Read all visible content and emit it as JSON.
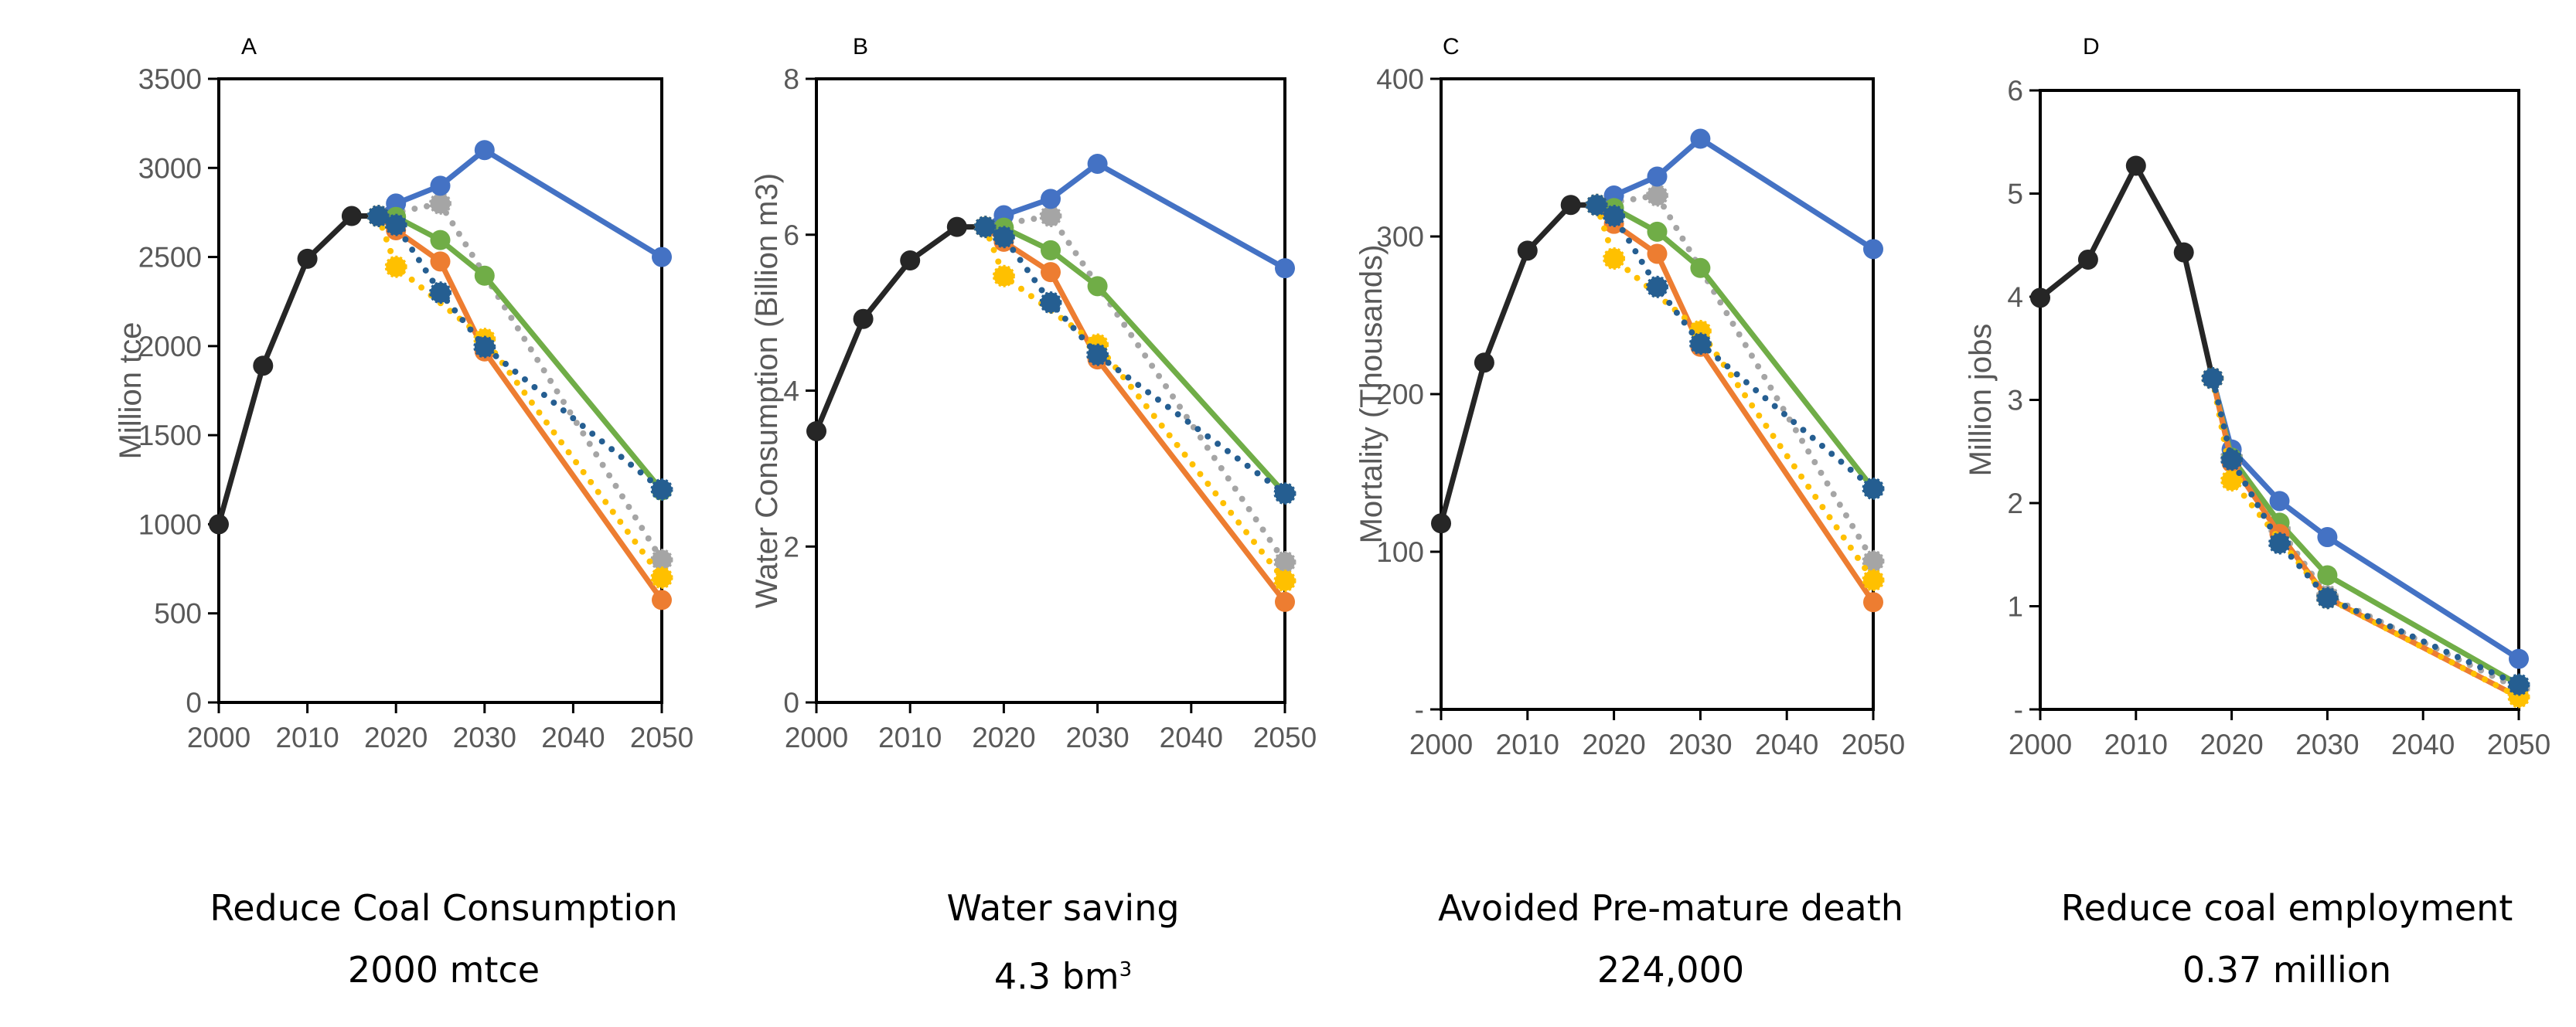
{
  "colors": {
    "historical": "#262626",
    "blue_series": "#4472C4",
    "gray_series": "#A5A5A5",
    "green_series": "#70AD47",
    "orange_series": "#ED7D31",
    "yellow_series": "#FFC000",
    "navy_series": "#255E91"
  },
  "captions": [
    {
      "line1": "Reduce Coal Consumption",
      "line2": "2000 mtce",
      "sup": ""
    },
    {
      "line1": "Water saving",
      "line2": "4.3 bm",
      "sup": "3"
    },
    {
      "line1": "Avoided Pre-mature death",
      "line2": "224,000",
      "sup": ""
    },
    {
      "line1": "Reduce coal employment",
      "line2": "0.37 million",
      "sup": ""
    }
  ],
  "chart_data": [
    {
      "type": "line",
      "panel_letter": "A",
      "ylabel": "Million tce",
      "xlabel": "",
      "xlim": [
        2000,
        2050
      ],
      "xticks": [
        "2000",
        "2010",
        "2020",
        "2030",
        "2040",
        "2050"
      ],
      "ylim": [
        0,
        3500
      ],
      "yticks": [
        {
          "v": 0,
          "label": "0"
        },
        {
          "v": 500,
          "label": "500"
        },
        {
          "v": 1000,
          "label": "1000"
        },
        {
          "v": 1500,
          "label": "1500"
        },
        {
          "v": 2000,
          "label": "2000"
        },
        {
          "v": 2500,
          "label": "2500"
        },
        {
          "v": 3000,
          "label": "3000"
        },
        {
          "v": 3500,
          "label": "3500"
        }
      ],
      "grid": false,
      "series": [
        {
          "color": "#262626",
          "style": "solid",
          "x": [
            2000,
            2005,
            2010,
            2015,
            2018
          ],
          "y": [
            1000,
            1890,
            2490,
            2730,
            2730
          ]
        },
        {
          "color": "#A5A5A5",
          "style": "dotted",
          "x": [
            2018,
            2025,
            2050
          ],
          "y": [
            2730,
            2800,
            800
          ]
        },
        {
          "color": "#4472C4",
          "style": "solid",
          "x": [
            2018,
            2020,
            2025,
            2030,
            2050
          ],
          "y": [
            2730,
            2800,
            2900,
            3100,
            2500
          ]
        },
        {
          "color": "#70AD47",
          "style": "solid",
          "x": [
            2018,
            2020,
            2025,
            2030,
            2050
          ],
          "y": [
            2730,
            2725,
            2595,
            2395,
            1190
          ]
        },
        {
          "color": "#ED7D31",
          "style": "solid",
          "x": [
            2018,
            2020,
            2025,
            2030,
            2050
          ],
          "y": [
            2730,
            2650,
            2475,
            1970,
            575
          ]
        },
        {
          "color": "#FFC000",
          "style": "dotted",
          "x": [
            2018,
            2020,
            2030,
            2050
          ],
          "y": [
            2730,
            2445,
            2040,
            700
          ]
        },
        {
          "color": "#255E91",
          "style": "dotted",
          "x": [
            2018,
            2020,
            2025,
            2030,
            2050
          ],
          "y": [
            2730,
            2680,
            2300,
            1995,
            1195
          ]
        }
      ]
    },
    {
      "type": "line",
      "panel_letter": "B",
      "ylabel": "Water Consumption (Billion m3)",
      "xlabel": "",
      "xlim": [
        2000,
        2050
      ],
      "xticks": [
        "2000",
        "2010",
        "2020",
        "2030",
        "2040",
        "2050"
      ],
      "ylim": [
        0,
        8
      ],
      "yticks": [
        {
          "v": 0,
          "label": "0"
        },
        {
          "v": 2,
          "label": "2"
        },
        {
          "v": 4,
          "label": "4"
        },
        {
          "v": 6,
          "label": "6"
        },
        {
          "v": 8,
          "label": "8"
        }
      ],
      "grid": false,
      "series": [
        {
          "color": "#262626",
          "style": "solid",
          "x": [
            2000,
            2005,
            2010,
            2015,
            2018
          ],
          "y": [
            3.48,
            4.92,
            5.67,
            6.1,
            6.1
          ]
        },
        {
          "color": "#A5A5A5",
          "style": "dotted",
          "x": [
            2018,
            2025,
            2050
          ],
          "y": [
            6.1,
            6.24,
            1.8
          ]
        },
        {
          "color": "#4472C4",
          "style": "solid",
          "x": [
            2018,
            2020,
            2025,
            2030,
            2050
          ],
          "y": [
            6.1,
            6.25,
            6.46,
            6.91,
            5.57
          ]
        },
        {
          "color": "#70AD47",
          "style": "solid",
          "x": [
            2018,
            2020,
            2025,
            2030,
            2050
          ],
          "y": [
            6.1,
            6.09,
            5.8,
            5.34,
            2.68
          ]
        },
        {
          "color": "#ED7D31",
          "style": "solid",
          "x": [
            2018,
            2020,
            2025,
            2030,
            2050
          ],
          "y": [
            6.1,
            5.91,
            5.52,
            4.4,
            1.29
          ]
        },
        {
          "color": "#FFC000",
          "style": "dotted",
          "x": [
            2018,
            2020,
            2030,
            2050
          ],
          "y": [
            6.1,
            5.47,
            4.59,
            1.56
          ]
        },
        {
          "color": "#255E91",
          "style": "dotted",
          "x": [
            2018,
            2020,
            2025,
            2030,
            2050
          ],
          "y": [
            6.1,
            5.97,
            5.13,
            4.46,
            2.68
          ]
        }
      ]
    },
    {
      "type": "line",
      "panel_letter": "C",
      "ylabel": "Mortality (Thousands)",
      "xlabel": "",
      "xlim": [
        2000,
        2050
      ],
      "xticks": [
        "2000",
        "2010",
        "2020",
        "2030",
        "2040",
        "2050"
      ],
      "ylim": [
        0,
        400
      ],
      "yticks": [
        {
          "v": 0,
          "label": "-"
        },
        {
          "v": 100,
          "label": "100"
        },
        {
          "v": 200,
          "label": "200"
        },
        {
          "v": 300,
          "label": "300"
        },
        {
          "v": 400,
          "label": "400"
        }
      ],
      "grid": false,
      "series": [
        {
          "color": "#262626",
          "style": "solid",
          "x": [
            2000,
            2005,
            2010,
            2015,
            2018
          ],
          "y": [
            118,
            220,
            291,
            320,
            320
          ]
        },
        {
          "color": "#A5A5A5",
          "style": "dotted",
          "x": [
            2018,
            2025,
            2050
          ],
          "y": [
            320,
            326,
            94
          ]
        },
        {
          "color": "#4472C4",
          "style": "solid",
          "x": [
            2018,
            2020,
            2025,
            2030,
            2050
          ],
          "y": [
            320,
            326,
            338,
            362,
            292
          ]
        },
        {
          "color": "#70AD47",
          "style": "solid",
          "x": [
            2018,
            2020,
            2025,
            2030,
            2050
          ],
          "y": [
            320,
            318,
            303,
            280,
            140
          ]
        },
        {
          "color": "#ED7D31",
          "style": "solid",
          "x": [
            2018,
            2020,
            2025,
            2030,
            2050
          ],
          "y": [
            320,
            308,
            289,
            230,
            68
          ]
        },
        {
          "color": "#FFC000",
          "style": "dotted",
          "x": [
            2018,
            2020,
            2030,
            2050
          ],
          "y": [
            320,
            286,
            240,
            82
          ]
        },
        {
          "color": "#255E91",
          "style": "dotted",
          "x": [
            2018,
            2020,
            2025,
            2030,
            2050
          ],
          "y": [
            320,
            313,
            268,
            232,
            140
          ]
        }
      ]
    },
    {
      "type": "line",
      "panel_letter": "D",
      "ylabel": "Million jobs",
      "xlabel": "",
      "xlim": [
        2000,
        2050
      ],
      "xticks": [
        "2000",
        "2010",
        "2020",
        "2030",
        "2040",
        "2050"
      ],
      "ylim": [
        0,
        6
      ],
      "yticks": [
        {
          "v": 0,
          "label": "-"
        },
        {
          "v": 1,
          "label": "1"
        },
        {
          "v": 2,
          "label": "2"
        },
        {
          "v": 3,
          "label": "3"
        },
        {
          "v": 4,
          "label": "4"
        },
        {
          "v": 5,
          "label": "5"
        },
        {
          "v": 6,
          "label": "6"
        }
      ],
      "grid": false,
      "series": [
        {
          "color": "#262626",
          "style": "solid",
          "x": [
            2000,
            2005,
            2010,
            2015,
            2018
          ],
          "y": [
            3.99,
            4.36,
            5.27,
            4.43,
            3.21
          ]
        },
        {
          "color": "#A5A5A5",
          "style": "dotted",
          "x": [
            2018,
            2020,
            2025,
            2030,
            2050
          ],
          "y": [
            3.21,
            2.45,
            1.75,
            1.1,
            0.2
          ]
        },
        {
          "color": "#4472C4",
          "style": "solid",
          "x": [
            2018,
            2020,
            2025,
            2030,
            2050
          ],
          "y": [
            3.21,
            2.52,
            2.02,
            1.67,
            0.49
          ]
        },
        {
          "color": "#70AD47",
          "style": "solid",
          "x": [
            2018,
            2020,
            2025,
            2030,
            2050
          ],
          "y": [
            3.21,
            2.44,
            1.81,
            1.3,
            0.24
          ]
        },
        {
          "color": "#ED7D31",
          "style": "solid",
          "x": [
            2018,
            2020,
            2025,
            2030,
            2050
          ],
          "y": [
            3.21,
            2.39,
            1.7,
            1.08,
            0.12
          ]
        },
        {
          "color": "#FFC000",
          "style": "dotted",
          "x": [
            2018,
            2020,
            2030,
            2050
          ],
          "y": [
            3.21,
            2.22,
            1.08,
            0.12
          ]
        },
        {
          "color": "#255E91",
          "style": "dotted",
          "x": [
            2018,
            2020,
            2025,
            2030,
            2050
          ],
          "y": [
            3.21,
            2.42,
            1.61,
            1.08,
            0.24
          ]
        }
      ]
    }
  ]
}
